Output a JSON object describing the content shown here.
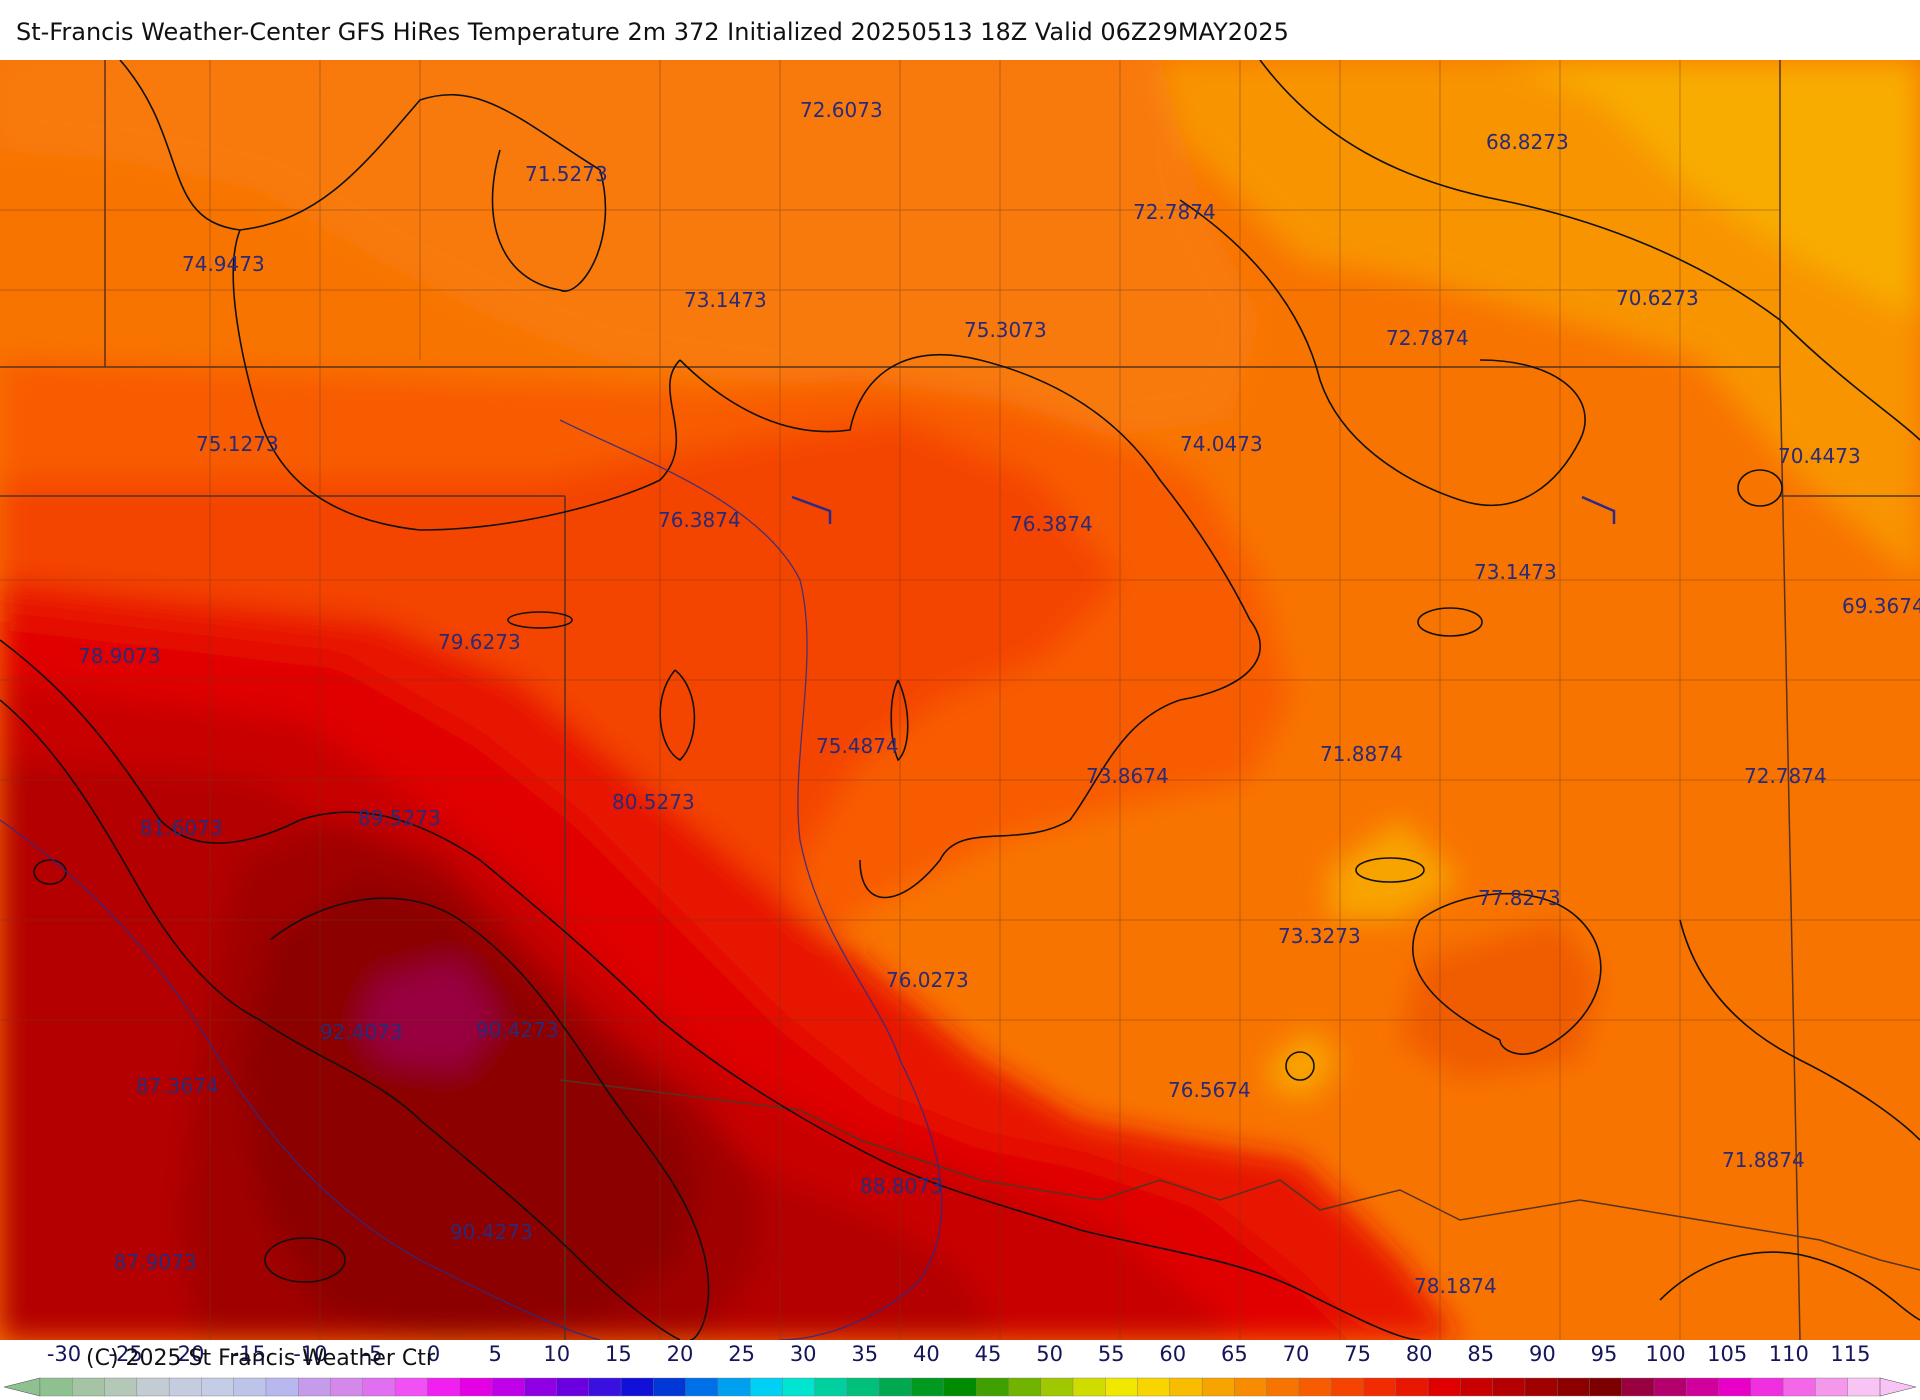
{
  "title": "St-Francis Weather-Center GFS HiRes Temperature 2m  372 Initialized 20250513 18Z Valid 06Z29MAY2025",
  "copyright": "(C) 2025 St Francis Weather Ctr",
  "temperature_labels": [
    "72.6073",
    "71.5273",
    "68.8273",
    "72.7874",
    "74.9473",
    "73.1473",
    "75.3073",
    "70.6273",
    "72.7874",
    "75.1273",
    "74.0473",
    "70.4473",
    "76.3874",
    "76.3874",
    "73.1473",
    "69.3674",
    "78.9073",
    "79.6273",
    "75.4874",
    "71.8874",
    "73.8674",
    "72.7874",
    "80.5273",
    "81.6073",
    "89.5273",
    "77.8273",
    "73.3273",
    "76.0273",
    "92.4073",
    "90.4273",
    "87.3674",
    "76.5674",
    "71.8874",
    "88.8073",
    "90.4273",
    "87.9073",
    "78.1874"
  ],
  "legend": {
    "ticks": [
      "-30",
      "-25",
      "-20",
      "-15",
      "-10",
      "-5",
      "0",
      "5",
      "10",
      "15",
      "20",
      "25",
      "30",
      "35",
      "40",
      "45",
      "50",
      "55",
      "60",
      "65",
      "70",
      "75",
      "80",
      "85",
      "90",
      "95",
      "100",
      "105",
      "110",
      "115"
    ],
    "colors": [
      "#8fc08f",
      "#a4c4a4",
      "#b4c8b8",
      "#c2ccd2",
      "#c6cce0",
      "#c4cce6",
      "#bcc4ea",
      "#b8b8ee",
      "#c49cea",
      "#d488ea",
      "#e070f0",
      "#f050f4",
      "#f020f0",
      "#e400e4",
      "#c000e8",
      "#9000e4",
      "#6a00e0",
      "#3a10e0",
      "#1010d8",
      "#0038d8",
      "#0070e8",
      "#00a0f0",
      "#00d0f4",
      "#00e4d0",
      "#00d0a0",
      "#00c07c",
      "#00a850",
      "#009a20",
      "#008c00",
      "#40a000",
      "#70b400",
      "#a0c800",
      "#d0dc00",
      "#f0e800",
      "#f8d400",
      "#f8bc00",
      "#f8a400",
      "#f88c00",
      "#f87400",
      "#f85c00",
      "#f44400",
      "#f02c00",
      "#e81800",
      "#e00000",
      "#c80000",
      "#b40000",
      "#a00000",
      "#8c0000",
      "#7c0000",
      "#980040",
      "#b4006c",
      "#d0009c",
      "#e800c8",
      "#f030e0",
      "#f468e8",
      "#f498ec",
      "#f8c4f4"
    ]
  }
}
